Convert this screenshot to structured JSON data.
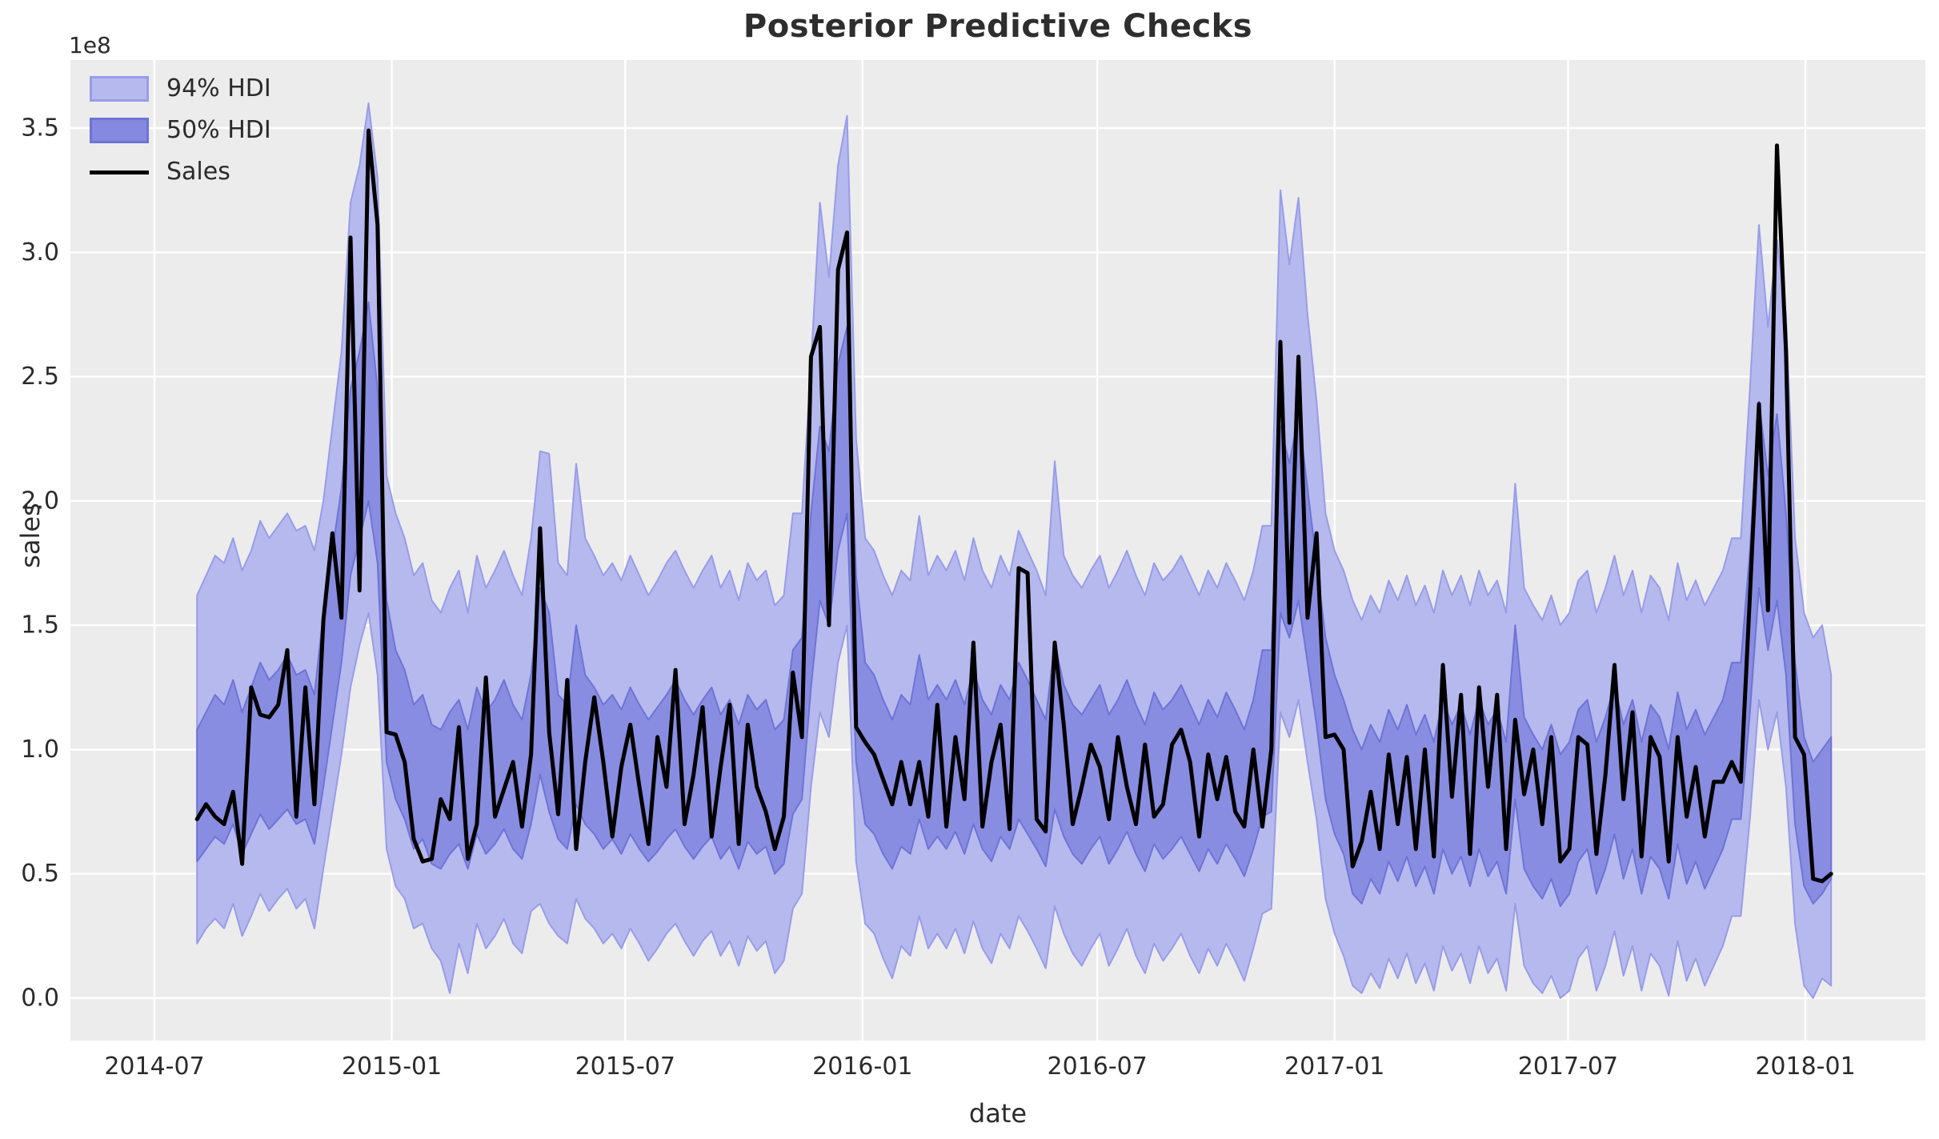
{
  "figure": {
    "title": "Posterior Predictive Checks",
    "xlabel": "date",
    "ylabel": "sales",
    "y_offset_text": "1e8"
  },
  "legend": {
    "items": [
      {
        "label": "94% HDI",
        "swatch": "patch-light"
      },
      {
        "label": "50% HDI",
        "swatch": "patch-dark"
      },
      {
        "label": "Sales",
        "swatch": "line"
      }
    ]
  },
  "chart_data": {
    "type": "line",
    "title": "Posterior Predictive Checks",
    "xlabel": "date",
    "ylabel": "sales",
    "y_offset_text": "1e8",
    "grid": true,
    "legend_position": "upper left",
    "x_start": "2014-08-03",
    "x_freq_days": 7,
    "n_points": 182,
    "x_tick_labels": [
      "2014-07",
      "2015-01",
      "2015-07",
      "2016-01",
      "2016-07",
      "2017-01",
      "2017-07",
      "2018-01"
    ],
    "y_tick_labels": [
      "0.0",
      "0.5",
      "1.0",
      "1.5",
      "2.0",
      "2.5",
      "3.0",
      "3.5"
    ],
    "y_tick_values_e8": [
      0,
      0.5,
      1,
      1.5,
      2,
      2.5,
      3,
      3.5
    ],
    "y_unit": "1e8",
    "ylim_e8": [
      -0.17,
      3.78
    ],
    "colors": {
      "plot_background": "#ececec",
      "grid": "#ffffff",
      "hdi94_fill": "#b6b9ed",
      "hdi94_edge": "#989ce8",
      "hdi50_fill": "#8589e0",
      "hdi50_edge": "#6e73d6",
      "sales_line": "#000000",
      "text": "#2b2b2b"
    },
    "series": [
      {
        "name": "94% HDI",
        "type": "band",
        "upper_e8": [
          1.62,
          1.7,
          1.78,
          1.75,
          1.85,
          1.72,
          1.8,
          1.92,
          1.85,
          1.9,
          1.95,
          1.88,
          1.9,
          1.8,
          2.0,
          2.3,
          2.6,
          3.2,
          3.35,
          3.6,
          3.3,
          2.1,
          1.95,
          1.85,
          1.7,
          1.75,
          1.6,
          1.55,
          1.65,
          1.72,
          1.55,
          1.78,
          1.65,
          1.72,
          1.8,
          1.7,
          1.62,
          1.85,
          2.2,
          2.19,
          1.75,
          1.7,
          2.15,
          1.85,
          1.78,
          1.7,
          1.75,
          1.68,
          1.78,
          1.7,
          1.62,
          1.68,
          1.75,
          1.8,
          1.72,
          1.65,
          1.72,
          1.78,
          1.65,
          1.72,
          1.6,
          1.75,
          1.68,
          1.72,
          1.58,
          1.62,
          1.95,
          1.95,
          2.55,
          3.2,
          2.9,
          3.35,
          3.55,
          2.25,
          1.85,
          1.8,
          1.7,
          1.62,
          1.72,
          1.68,
          1.94,
          1.7,
          1.78,
          1.72,
          1.8,
          1.68,
          1.85,
          1.72,
          1.65,
          1.78,
          1.7,
          1.88,
          1.8,
          1.72,
          1.62,
          2.16,
          1.78,
          1.7,
          1.65,
          1.72,
          1.78,
          1.65,
          1.72,
          1.8,
          1.7,
          1.62,
          1.75,
          1.68,
          1.72,
          1.78,
          1.7,
          1.62,
          1.72,
          1.65,
          1.75,
          1.68,
          1.6,
          1.72,
          1.9,
          1.9,
          3.25,
          2.95,
          3.22,
          2.75,
          2.4,
          1.95,
          1.8,
          1.72,
          1.6,
          1.52,
          1.62,
          1.55,
          1.68,
          1.6,
          1.7,
          1.58,
          1.66,
          1.55,
          1.72,
          1.62,
          1.7,
          1.58,
          1.72,
          1.62,
          1.68,
          1.55,
          2.07,
          1.65,
          1.58,
          1.52,
          1.62,
          1.5,
          1.55,
          1.68,
          1.72,
          1.55,
          1.65,
          1.78,
          1.62,
          1.72,
          1.55,
          1.7,
          1.65,
          1.52,
          1.75,
          1.6,
          1.68,
          1.58,
          1.65,
          1.72,
          1.85,
          1.85,
          2.45,
          3.11,
          2.7,
          3.05,
          2.75,
          1.85,
          1.55,
          1.45,
          1.5,
          1.3
        ],
        "lower_e8": [
          0.22,
          0.28,
          0.32,
          0.28,
          0.38,
          0.25,
          0.33,
          0.42,
          0.35,
          0.4,
          0.44,
          0.36,
          0.4,
          0.28,
          0.52,
          0.75,
          0.98,
          1.25,
          1.42,
          1.55,
          1.3,
          0.6,
          0.45,
          0.4,
          0.28,
          0.3,
          0.2,
          0.15,
          0.02,
          0.22,
          0.1,
          0.3,
          0.2,
          0.25,
          0.32,
          0.22,
          0.18,
          0.35,
          0.38,
          0.3,
          0.25,
          0.22,
          0.4,
          0.32,
          0.28,
          0.22,
          0.26,
          0.2,
          0.28,
          0.22,
          0.15,
          0.2,
          0.26,
          0.3,
          0.23,
          0.17,
          0.23,
          0.27,
          0.17,
          0.23,
          0.13,
          0.25,
          0.19,
          0.23,
          0.1,
          0.15,
          0.36,
          0.42,
          0.85,
          1.15,
          1.05,
          1.35,
          1.5,
          0.55,
          0.3,
          0.26,
          0.16,
          0.08,
          0.21,
          0.17,
          0.33,
          0.2,
          0.26,
          0.2,
          0.28,
          0.18,
          0.31,
          0.2,
          0.14,
          0.26,
          0.2,
          0.33,
          0.27,
          0.2,
          0.12,
          0.37,
          0.26,
          0.18,
          0.13,
          0.2,
          0.26,
          0.13,
          0.2,
          0.28,
          0.17,
          0.1,
          0.22,
          0.15,
          0.2,
          0.26,
          0.17,
          0.1,
          0.2,
          0.13,
          0.22,
          0.15,
          0.07,
          0.2,
          0.34,
          0.36,
          1.15,
          1.05,
          1.2,
          0.95,
          0.72,
          0.4,
          0.26,
          0.17,
          0.05,
          0.02,
          0.1,
          0.04,
          0.16,
          0.08,
          0.18,
          0.06,
          0.14,
          0.03,
          0.21,
          0.11,
          0.18,
          0.06,
          0.21,
          0.1,
          0.16,
          0.03,
          0.38,
          0.13,
          0.06,
          0.02,
          0.09,
          0.0,
          0.03,
          0.16,
          0.21,
          0.03,
          0.13,
          0.27,
          0.09,
          0.21,
          0.03,
          0.18,
          0.13,
          0.01,
          0.23,
          0.07,
          0.16,
          0.05,
          0.13,
          0.21,
          0.33,
          0.33,
          0.72,
          1.2,
          1.0,
          1.15,
          0.85,
          0.3,
          0.05,
          0.0,
          0.08,
          0.05
        ]
      },
      {
        "name": "50% HDI",
        "type": "band",
        "upper_e8": [
          1.08,
          1.15,
          1.22,
          1.18,
          1.28,
          1.15,
          1.25,
          1.35,
          1.28,
          1.32,
          1.38,
          1.3,
          1.32,
          1.22,
          1.55,
          1.8,
          2.05,
          2.45,
          2.6,
          2.8,
          2.45,
          1.6,
          1.4,
          1.32,
          1.18,
          1.22,
          1.1,
          1.08,
          1.15,
          1.2,
          1.08,
          1.25,
          1.15,
          1.2,
          1.28,
          1.18,
          1.12,
          1.3,
          1.65,
          1.55,
          1.22,
          1.18,
          1.5,
          1.3,
          1.25,
          1.18,
          1.22,
          1.16,
          1.25,
          1.18,
          1.12,
          1.17,
          1.22,
          1.28,
          1.2,
          1.14,
          1.2,
          1.25,
          1.14,
          1.2,
          1.1,
          1.22,
          1.16,
          1.2,
          1.08,
          1.12,
          1.4,
          1.45,
          1.95,
          2.3,
          2.2,
          2.55,
          2.7,
          1.7,
          1.35,
          1.3,
          1.2,
          1.12,
          1.22,
          1.18,
          1.38,
          1.2,
          1.26,
          1.2,
          1.28,
          1.18,
          1.32,
          1.2,
          1.14,
          1.26,
          1.2,
          1.35,
          1.28,
          1.2,
          1.12,
          1.43,
          1.26,
          1.18,
          1.14,
          1.2,
          1.26,
          1.14,
          1.2,
          1.28,
          1.18,
          1.1,
          1.23,
          1.16,
          1.2,
          1.26,
          1.18,
          1.1,
          1.2,
          1.13,
          1.23,
          1.16,
          1.08,
          1.2,
          1.4,
          1.4,
          2.3,
          2.15,
          2.35,
          2.05,
          1.75,
          1.45,
          1.3,
          1.2,
          1.08,
          1.0,
          1.1,
          1.03,
          1.16,
          1.08,
          1.18,
          1.06,
          1.14,
          1.03,
          1.2,
          1.1,
          1.18,
          1.06,
          1.2,
          1.1,
          1.16,
          1.03,
          1.5,
          1.13,
          1.06,
          1.0,
          1.1,
          0.98,
          1.03,
          1.16,
          1.2,
          1.03,
          1.13,
          1.26,
          1.1,
          1.2,
          1.03,
          1.18,
          1.13,
          1.0,
          1.23,
          1.08,
          1.16,
          1.06,
          1.13,
          1.2,
          1.35,
          1.35,
          1.8,
          2.4,
          2.1,
          2.35,
          1.95,
          1.35,
          1.05,
          0.95,
          1.0,
          1.05
        ],
        "lower_e8": [
          0.55,
          0.6,
          0.65,
          0.62,
          0.7,
          0.58,
          0.66,
          0.74,
          0.68,
          0.72,
          0.76,
          0.7,
          0.72,
          0.62,
          0.85,
          1.1,
          1.35,
          1.7,
          1.85,
          2.0,
          1.75,
          0.95,
          0.8,
          0.72,
          0.6,
          0.64,
          0.54,
          0.52,
          0.58,
          0.62,
          0.52,
          0.66,
          0.58,
          0.62,
          0.68,
          0.6,
          0.56,
          0.7,
          0.9,
          0.75,
          0.64,
          0.6,
          0.78,
          0.7,
          0.66,
          0.6,
          0.64,
          0.58,
          0.66,
          0.6,
          0.55,
          0.59,
          0.64,
          0.68,
          0.61,
          0.56,
          0.61,
          0.65,
          0.56,
          0.61,
          0.52,
          0.63,
          0.58,
          0.61,
          0.5,
          0.54,
          0.74,
          0.8,
          1.25,
          1.6,
          1.5,
          1.8,
          1.95,
          0.95,
          0.7,
          0.66,
          0.58,
          0.52,
          0.61,
          0.58,
          0.72,
          0.6,
          0.65,
          0.6,
          0.67,
          0.58,
          0.7,
          0.6,
          0.55,
          0.65,
          0.6,
          0.72,
          0.66,
          0.6,
          0.53,
          0.76,
          0.65,
          0.58,
          0.54,
          0.6,
          0.65,
          0.54,
          0.6,
          0.67,
          0.58,
          0.51,
          0.62,
          0.56,
          0.6,
          0.65,
          0.58,
          0.51,
          0.6,
          0.54,
          0.62,
          0.56,
          0.49,
          0.6,
          0.73,
          0.75,
          1.55,
          1.45,
          1.6,
          1.35,
          1.1,
          0.8,
          0.66,
          0.58,
          0.42,
          0.38,
          0.48,
          0.42,
          0.55,
          0.47,
          0.57,
          0.45,
          0.53,
          0.42,
          0.6,
          0.5,
          0.57,
          0.45,
          0.6,
          0.49,
          0.55,
          0.42,
          0.8,
          0.52,
          0.45,
          0.4,
          0.48,
          0.37,
          0.42,
          0.55,
          0.6,
          0.42,
          0.52,
          0.66,
          0.48,
          0.6,
          0.42,
          0.57,
          0.52,
          0.4,
          0.62,
          0.46,
          0.55,
          0.44,
          0.52,
          0.6,
          0.72,
          0.72,
          1.15,
          1.65,
          1.4,
          1.6,
          1.3,
          0.7,
          0.45,
          0.38,
          0.42,
          0.48
        ]
      },
      {
        "name": "Sales",
        "type": "line",
        "values_e8": [
          0.72,
          0.78,
          0.73,
          0.7,
          0.83,
          0.54,
          1.25,
          1.14,
          1.13,
          1.18,
          1.4,
          0.73,
          1.25,
          0.78,
          1.52,
          1.87,
          1.53,
          3.06,
          1.64,
          3.49,
          3.11,
          1.07,
          1.06,
          0.95,
          0.64,
          0.55,
          0.56,
          0.8,
          0.72,
          1.09,
          0.56,
          0.7,
          1.29,
          0.73,
          0.84,
          0.95,
          0.69,
          0.98,
          1.89,
          1.07,
          0.74,
          1.28,
          0.6,
          0.95,
          1.21,
          0.95,
          0.65,
          0.93,
          1.1,
          0.85,
          0.62,
          1.05,
          0.85,
          1.32,
          0.7,
          0.9,
          1.17,
          0.65,
          0.93,
          1.18,
          0.62,
          1.1,
          0.85,
          0.75,
          0.6,
          0.73,
          1.31,
          1.05,
          2.58,
          2.7,
          1.5,
          2.93,
          3.08,
          1.09,
          1.03,
          0.98,
          0.88,
          0.78,
          0.95,
          0.78,
          0.95,
          0.73,
          1.18,
          0.69,
          1.05,
          0.8,
          1.43,
          0.69,
          0.95,
          1.1,
          0.68,
          1.73,
          1.71,
          0.72,
          0.67,
          1.43,
          1.1,
          0.7,
          0.85,
          1.02,
          0.93,
          0.72,
          1.05,
          0.85,
          0.7,
          1.02,
          0.73,
          0.78,
          1.02,
          1.08,
          0.95,
          0.65,
          0.98,
          0.8,
          0.97,
          0.75,
          0.69,
          1.0,
          0.69,
          1.0,
          2.64,
          1.51,
          2.58,
          1.53,
          1.87,
          1.05,
          1.06,
          1.0,
          0.53,
          0.63,
          0.83,
          0.6,
          0.98,
          0.7,
          0.97,
          0.6,
          1.0,
          0.57,
          1.34,
          0.81,
          1.22,
          0.58,
          1.25,
          0.85,
          1.22,
          0.6,
          1.12,
          0.82,
          1.0,
          0.7,
          1.05,
          0.55,
          0.6,
          1.05,
          1.02,
          0.58,
          0.9,
          1.34,
          0.8,
          1.15,
          0.57,
          1.05,
          0.97,
          0.55,
          1.05,
          0.73,
          0.93,
          0.65,
          0.87,
          0.87,
          0.95,
          0.87,
          1.62,
          2.39,
          1.56,
          3.43,
          2.6,
          1.05,
          0.98,
          0.48,
          0.47,
          0.5
        ]
      }
    ]
  }
}
